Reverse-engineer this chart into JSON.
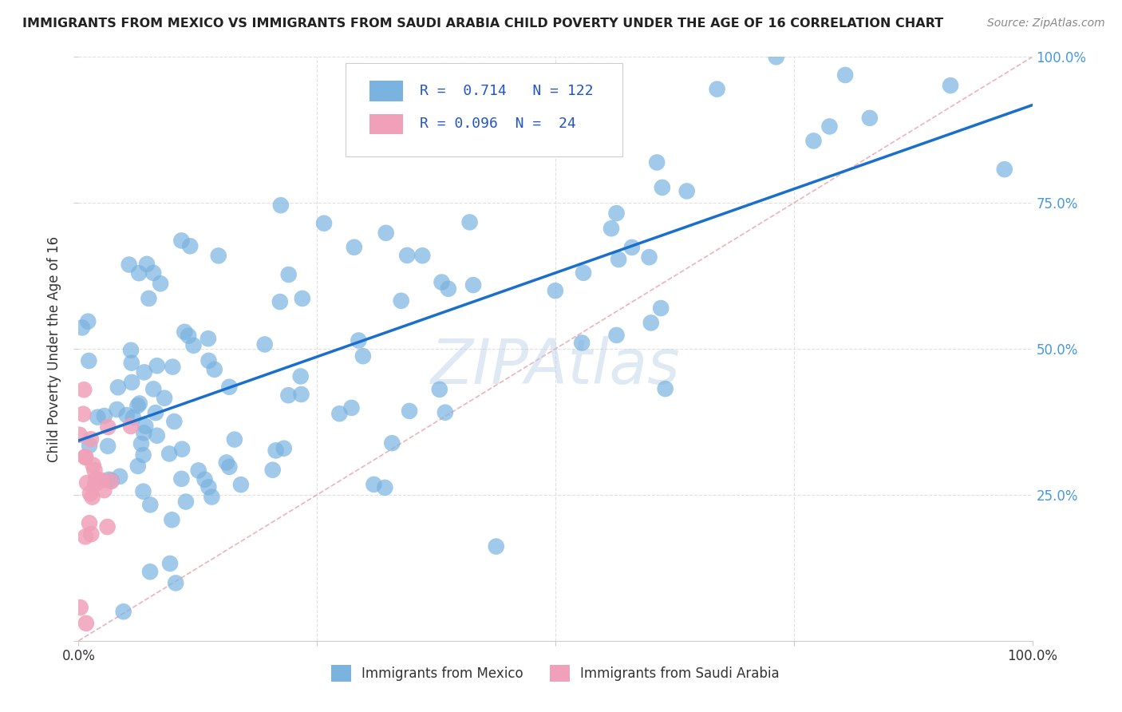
{
  "title": "IMMIGRANTS FROM MEXICO VS IMMIGRANTS FROM SAUDI ARABIA CHILD POVERTY UNDER THE AGE OF 16 CORRELATION CHART",
  "source": "Source: ZipAtlas.com",
  "xlabel_mexico": "Immigrants from Mexico",
  "xlabel_saudi": "Immigrants from Saudi Arabia",
  "ylabel": "Child Poverty Under the Age of 16",
  "R_mexico": 0.714,
  "N_mexico": 122,
  "R_saudi": 0.096,
  "N_saudi": 24,
  "xlim": [
    0,
    1.0
  ],
  "ylim": [
    0,
    1.0
  ],
  "mexico_color": "#7ab3e0",
  "saudi_color": "#f0a0b8",
  "regression_line_color": "#1a6fcc",
  "reference_line_color": "#e8a0a8",
  "watermark": "ZIPAtlas",
  "background_color": "#ffffff",
  "grid_color": "#e0e0e0",
  "title_color": "#222222",
  "source_color": "#888888",
  "ytick_color": "#4499dd",
  "xtick_color": "#333333",
  "legend_text_color": "#2255cc"
}
